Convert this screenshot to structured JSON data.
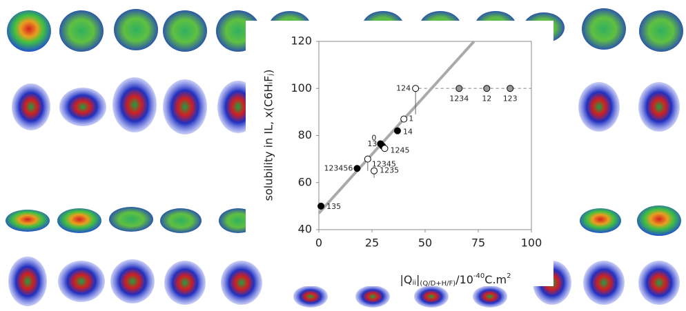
{
  "chart_data": {
    "type": "scatter",
    "x_label": {
      "a": "|Q",
      "b": "ii",
      "c": "|",
      "d": "(Q/D+H/F)",
      "e": "/10",
      "f": "-40",
      "g": "C.m",
      "h": "2"
    },
    "y_label": "solubility in IL, x(C6HᵢFⱼ)",
    "xlim": [
      0,
      100
    ],
    "xticks": [
      0,
      25,
      50,
      75,
      100
    ],
    "ylim": [
      40,
      120
    ],
    "yticks": [
      40,
      60,
      80,
      100,
      120
    ],
    "points": {
      "labels": [
        "135",
        "123456",
        "12345",
        "1235",
        "0",
        "13",
        "1245",
        "14",
        "1",
        "124",
        "1234",
        "12",
        "123"
      ],
      "x": [
        1,
        18,
        23,
        26,
        29,
        30,
        31,
        37,
        40,
        45.5,
        66,
        79,
        90
      ],
      "y": [
        50,
        66,
        70,
        65,
        76.5,
        75.5,
        74.5,
        82,
        87,
        100,
        100,
        100,
        100
      ],
      "errors": [
        null,
        null,
        5,
        3,
        null,
        null,
        null,
        null,
        null,
        11,
        null,
        null,
        null
      ],
      "fills": [
        "#000000",
        "#000000",
        "#ffffff",
        "#ffffff",
        "#000000",
        "#000000",
        "#ffffff",
        "#000000",
        "#ffffff",
        "#ffffff",
        "#999999",
        "#999999",
        "#999999"
      ]
    },
    "trend_line": {
      "color": "#aaaaaa",
      "x": [
        0,
        73
      ],
      "y": [
        47,
        120
      ]
    },
    "reference_line": {
      "color": "#aaaaaa",
      "x": [
        47,
        100
      ],
      "y": [
        100,
        100
      ]
    }
  }
}
